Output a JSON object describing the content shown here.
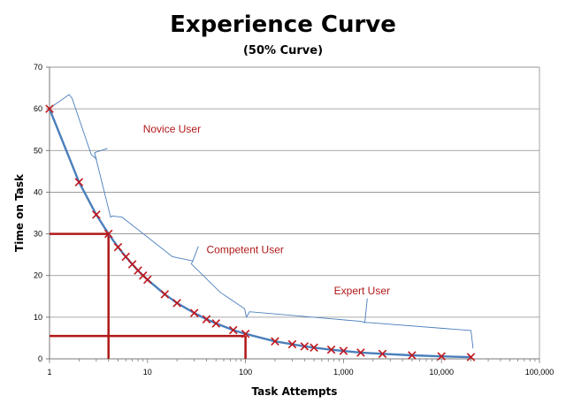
{
  "chart_data": {
    "type": "line",
    "title": "Experience Curve",
    "subtitle": "(50% Curve)",
    "xlabel": "Task Attempts",
    "ylabel": "Time on Task",
    "xscale": "log",
    "xlim": [
      1,
      100000
    ],
    "ylim": [
      0,
      70
    ],
    "grid": "horizontal",
    "x_ticks": [
      {
        "value": 1,
        "label": "1"
      },
      {
        "value": 10,
        "label": "10"
      },
      {
        "value": 100,
        "label": "100"
      },
      {
        "value": 1000,
        "label": "1,000"
      },
      {
        "value": 10000,
        "label": "10,000"
      },
      {
        "value": 100000,
        "label": "100,000"
      }
    ],
    "y_ticks": [
      0,
      10,
      20,
      30,
      40,
      50,
      60,
      70
    ],
    "series": [
      {
        "color": "#4a7ebb",
        "marker": "x",
        "marker_color": "#c0151b",
        "points": [
          {
            "x": 1,
            "y": 60
          },
          {
            "x": 2,
            "y": 42.4
          },
          {
            "x": 3,
            "y": 34.6
          },
          {
            "x": 4,
            "y": 30
          },
          {
            "x": 5,
            "y": 26.8
          },
          {
            "x": 6,
            "y": 24.5
          },
          {
            "x": 7,
            "y": 22.7
          },
          {
            "x": 8,
            "y": 21.2
          },
          {
            "x": 9,
            "y": 20
          },
          {
            "x": 10,
            "y": 19
          },
          {
            "x": 15,
            "y": 15.5
          },
          {
            "x": 20,
            "y": 13.4
          },
          {
            "x": 30,
            "y": 11
          },
          {
            "x": 40,
            "y": 9.5
          },
          {
            "x": 50,
            "y": 8.5
          },
          {
            "x": 75,
            "y": 6.9
          },
          {
            "x": 100,
            "y": 6
          },
          {
            "x": 200,
            "y": 4.2
          },
          {
            "x": 300,
            "y": 3.5
          },
          {
            "x": 400,
            "y": 3
          },
          {
            "x": 500,
            "y": 2.7
          },
          {
            "x": 750,
            "y": 2.2
          },
          {
            "x": 1000,
            "y": 1.9
          },
          {
            "x": 1500,
            "y": 1.5
          },
          {
            "x": 2500,
            "y": 1.2
          },
          {
            "x": 5000,
            "y": 0.85
          },
          {
            "x": 10000,
            "y": 0.6
          },
          {
            "x": 20000,
            "y": 0.42
          }
        ]
      }
    ],
    "reference_lines": [
      {
        "x": 4,
        "y": 30,
        "color": "#b01818"
      },
      {
        "x": 100,
        "y": 5.5,
        "color": "#b01818"
      }
    ],
    "annotations": [
      {
        "text": "Novice User",
        "range_x": [
          1,
          4
        ]
      },
      {
        "text": "Competent User",
        "range_x": [
          4,
          100
        ]
      },
      {
        "text": "Expert User",
        "range_x": [
          100,
          20000
        ]
      }
    ]
  }
}
